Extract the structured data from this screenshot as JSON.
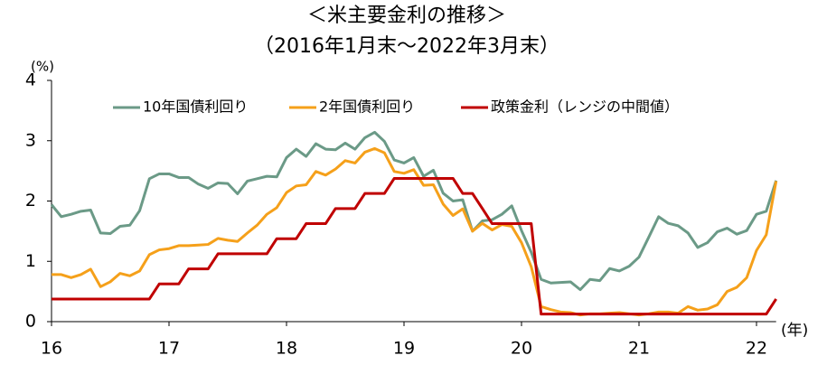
{
  "chart_data": {
    "type": "line",
    "title": "＜米主要金利の推移＞",
    "subtitle": "（2016年1月末～2022年3月末）",
    "y_unit": "(%)",
    "x_unit": "(年)",
    "x": [
      16,
      16.083,
      16.167,
      16.25,
      16.333,
      16.417,
      16.5,
      16.583,
      16.667,
      16.75,
      16.833,
      16.917,
      17,
      17.083,
      17.167,
      17.25,
      17.333,
      17.417,
      17.5,
      17.583,
      17.667,
      17.75,
      17.833,
      17.917,
      18,
      18.083,
      18.167,
      18.25,
      18.333,
      18.417,
      18.5,
      18.583,
      18.667,
      18.75,
      18.833,
      18.917,
      19,
      19.083,
      19.167,
      19.25,
      19.333,
      19.417,
      19.5,
      19.583,
      19.667,
      19.75,
      19.833,
      19.917,
      20,
      20.083,
      20.167,
      20.25,
      20.333,
      20.417,
      20.5,
      20.583,
      20.667,
      20.75,
      20.833,
      20.917,
      21,
      21.083,
      21.167,
      21.25,
      21.333,
      21.417,
      21.5,
      21.583,
      21.667,
      21.75,
      21.833,
      21.917,
      22,
      22.083,
      22.167
    ],
    "series": [
      {
        "name": "10年国債利回り",
        "color": "#6b9a87",
        "values": [
          1.94,
          1.74,
          1.78,
          1.83,
          1.85,
          1.47,
          1.46,
          1.58,
          1.6,
          1.84,
          2.37,
          2.45,
          2.45,
          2.39,
          2.39,
          2.28,
          2.21,
          2.3,
          2.29,
          2.12,
          2.33,
          2.37,
          2.41,
          2.4,
          2.72,
          2.86,
          2.74,
          2.95,
          2.86,
          2.85,
          2.96,
          2.86,
          3.05,
          3.14,
          2.99,
          2.68,
          2.63,
          2.72,
          2.41,
          2.51,
          2.13,
          2.0,
          2.02,
          1.5,
          1.67,
          1.69,
          1.78,
          1.92,
          1.51,
          1.15,
          0.7,
          0.64,
          0.65,
          0.66,
          0.53,
          0.7,
          0.68,
          0.88,
          0.84,
          0.92,
          1.07,
          1.4,
          1.74,
          1.63,
          1.59,
          1.47,
          1.23,
          1.31,
          1.49,
          1.55,
          1.45,
          1.51,
          1.78,
          1.83,
          2.34
        ]
      },
      {
        "name": "2年国債利回り",
        "color": "#f5a01a",
        "values": [
          0.78,
          0.78,
          0.73,
          0.78,
          0.87,
          0.58,
          0.66,
          0.8,
          0.76,
          0.84,
          1.11,
          1.19,
          1.21,
          1.26,
          1.26,
          1.27,
          1.28,
          1.38,
          1.35,
          1.33,
          1.47,
          1.6,
          1.78,
          1.89,
          2.14,
          2.25,
          2.27,
          2.49,
          2.43,
          2.53,
          2.67,
          2.63,
          2.81,
          2.87,
          2.8,
          2.49,
          2.46,
          2.52,
          2.26,
          2.27,
          1.95,
          1.76,
          1.87,
          1.5,
          1.63,
          1.52,
          1.61,
          1.58,
          1.31,
          0.91,
          0.25,
          0.2,
          0.16,
          0.15,
          0.11,
          0.13,
          0.13,
          0.14,
          0.15,
          0.13,
          0.11,
          0.13,
          0.16,
          0.16,
          0.14,
          0.25,
          0.19,
          0.21,
          0.28,
          0.5,
          0.57,
          0.73,
          1.18,
          1.44,
          2.33
        ]
      },
      {
        "name": "政策金利（レンジの中間値）",
        "color": "#c00000",
        "values": [
          0.375,
          0.375,
          0.375,
          0.375,
          0.375,
          0.375,
          0.375,
          0.375,
          0.375,
          0.375,
          0.375,
          0.625,
          0.625,
          0.625,
          0.875,
          0.875,
          0.875,
          1.125,
          1.125,
          1.125,
          1.125,
          1.125,
          1.125,
          1.375,
          1.375,
          1.375,
          1.625,
          1.625,
          1.625,
          1.875,
          1.875,
          1.875,
          2.125,
          2.125,
          2.125,
          2.375,
          2.375,
          2.375,
          2.375,
          2.375,
          2.375,
          2.375,
          2.125,
          2.125,
          1.875,
          1.625,
          1.625,
          1.625,
          1.625,
          1.625,
          0.125,
          0.125,
          0.125,
          0.125,
          0.125,
          0.125,
          0.125,
          0.125,
          0.125,
          0.125,
          0.125,
          0.125,
          0.125,
          0.125,
          0.125,
          0.125,
          0.125,
          0.125,
          0.125,
          0.125,
          0.125,
          0.125,
          0.125,
          0.125,
          0.375
        ]
      }
    ],
    "xlim": [
      16,
      22.167
    ],
    "xticks": [
      16,
      17,
      18,
      19,
      20,
      21,
      22
    ],
    "ylim": [
      0,
      4
    ],
    "yticks": [
      0,
      1,
      2,
      3,
      4
    ],
    "grid": false
  }
}
